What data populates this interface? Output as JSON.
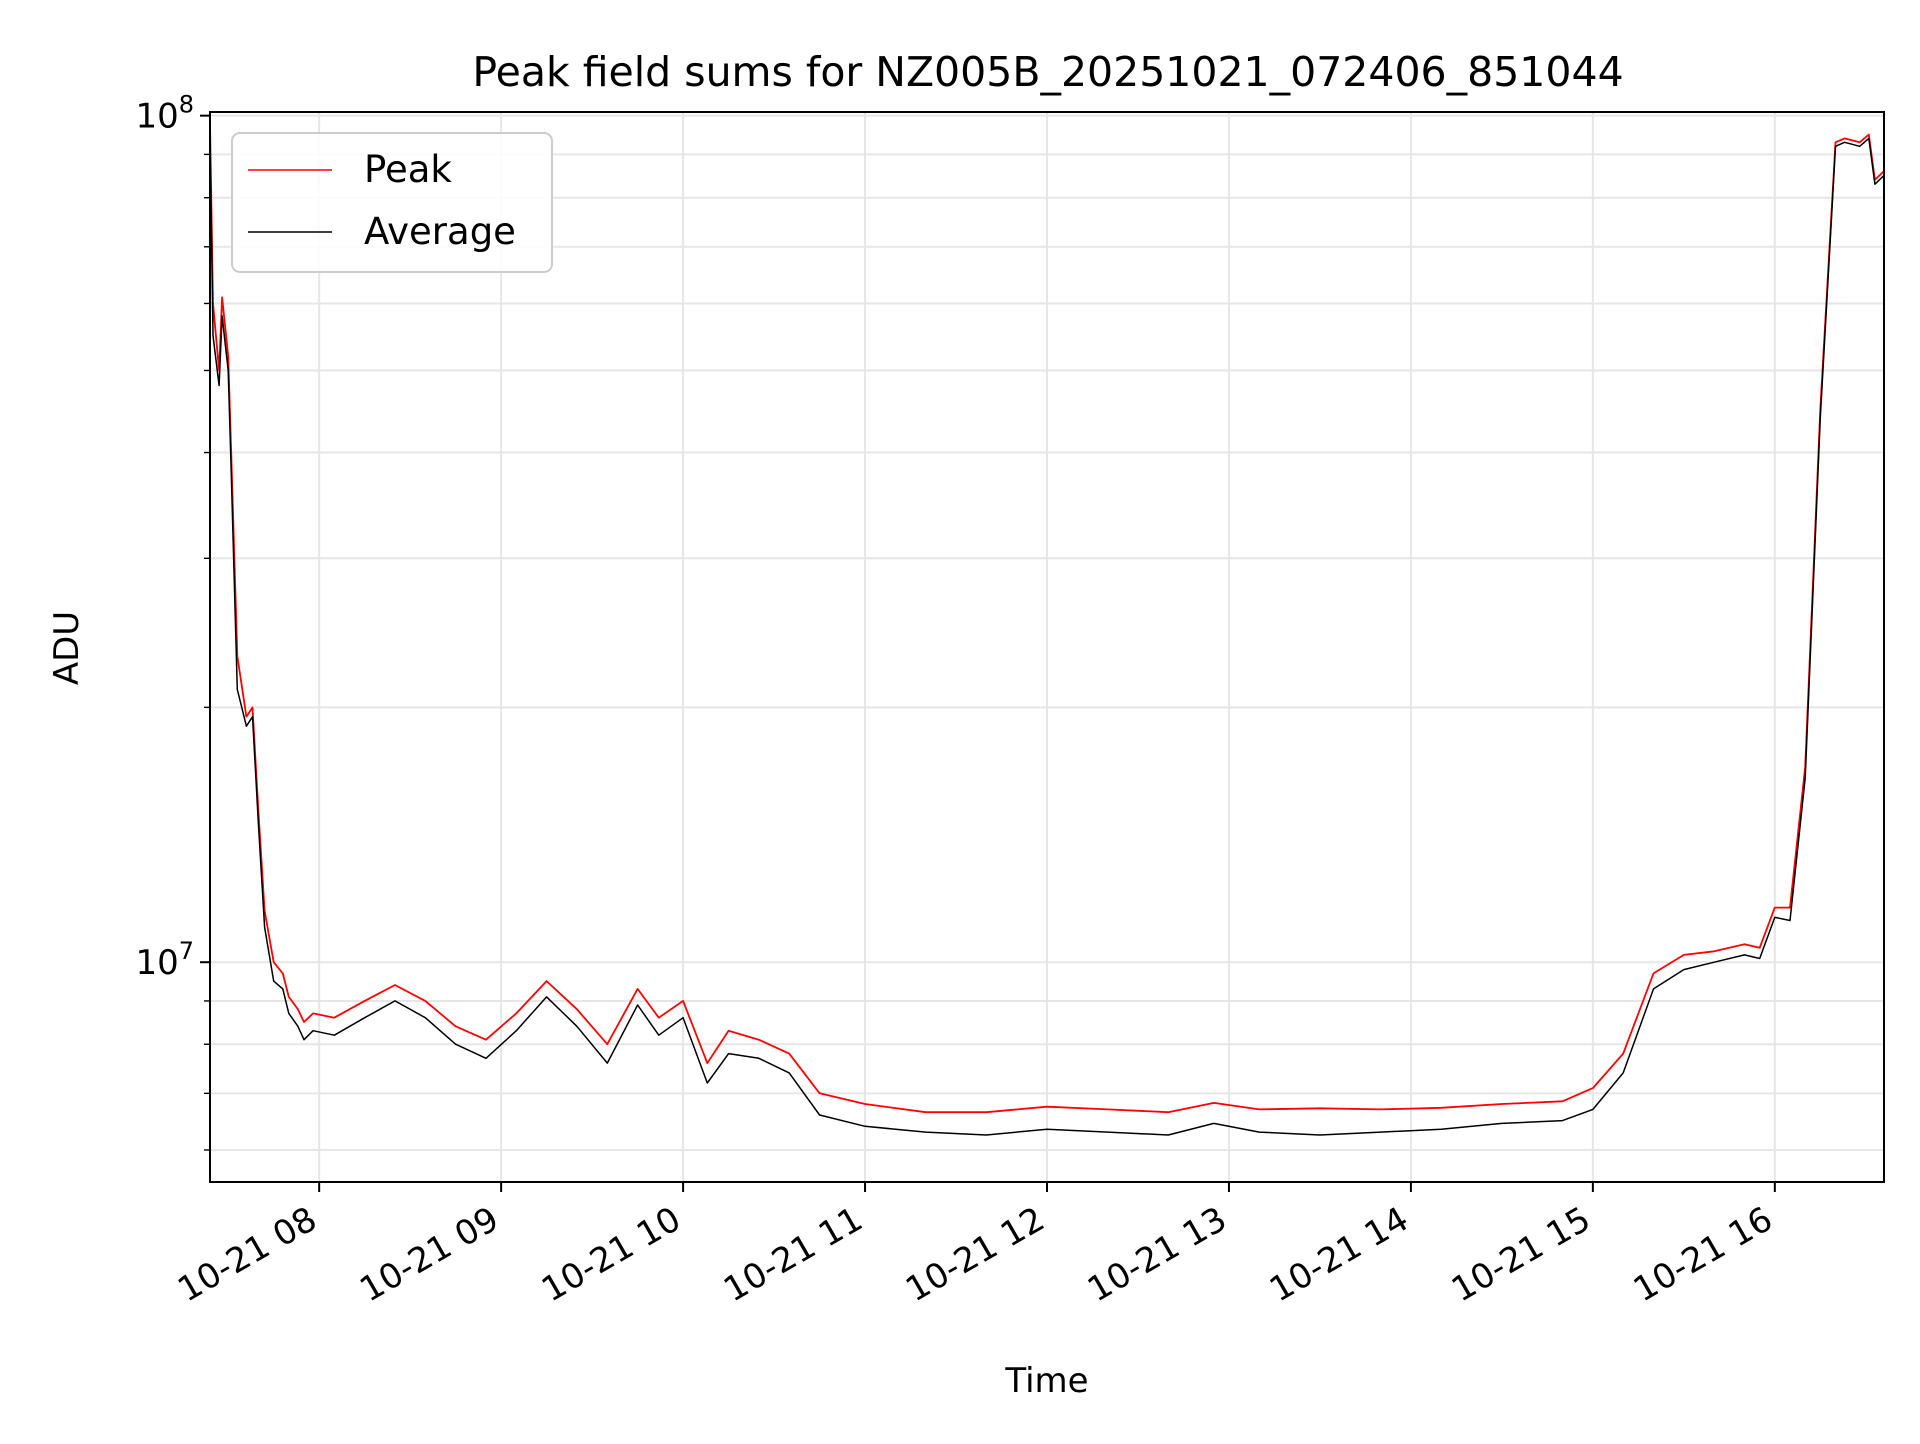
{
  "chart_data": {
    "type": "line",
    "title": "Peak field sums for NZ005B_20251021_072406_851044",
    "xlabel": "Time",
    "ylabel": "ADU",
    "yscale": "log",
    "ylim": [
      5500000,
      101000000
    ],
    "xlim": [
      "2025-10-21 07:24",
      "2025-10-21 16:36"
    ],
    "grid": true,
    "legend_position": "upper-left",
    "x_ticks": [
      {
        "label": "10-21 08",
        "value": "2025-10-21 08:00"
      },
      {
        "label": "10-21 09",
        "value": "2025-10-21 09:00"
      },
      {
        "label": "10-21 10",
        "value": "2025-10-21 10:00"
      },
      {
        "label": "10-21 11",
        "value": "2025-10-21 11:00"
      },
      {
        "label": "10-21 12",
        "value": "2025-10-21 12:00"
      },
      {
        "label": "10-21 13",
        "value": "2025-10-21 13:00"
      },
      {
        "label": "10-21 14",
        "value": "2025-10-21 14:00"
      },
      {
        "label": "10-21 15",
        "value": "2025-10-21 15:00"
      },
      {
        "label": "10-21 16",
        "value": "2025-10-21 16:00"
      }
    ],
    "y_ticks": [
      {
        "value": 10000000,
        "base": "10",
        "exp": "7"
      },
      {
        "value": 100000000,
        "base": "10",
        "exp": "8"
      }
    ],
    "series": [
      {
        "name": "Peak",
        "color": "#ff0000",
        "x": [
          "2025-10-21 07:24",
          "2025-10-21 07:25",
          "2025-10-21 07:27",
          "2025-10-21 07:28",
          "2025-10-21 07:30",
          "2025-10-21 07:31",
          "2025-10-21 07:33",
          "2025-10-21 07:36",
          "2025-10-21 07:38",
          "2025-10-21 07:40",
          "2025-10-21 07:42",
          "2025-10-21 07:45",
          "2025-10-21 07:48",
          "2025-10-21 07:50",
          "2025-10-21 07:53",
          "2025-10-21 07:55",
          "2025-10-21 07:58",
          "2025-10-21 08:05",
          "2025-10-21 08:15",
          "2025-10-21 08:25",
          "2025-10-21 08:35",
          "2025-10-21 08:45",
          "2025-10-21 08:55",
          "2025-10-21 09:05",
          "2025-10-21 09:15",
          "2025-10-21 09:25",
          "2025-10-21 09:35",
          "2025-10-21 09:45",
          "2025-10-21 09:52",
          "2025-10-21 10:00",
          "2025-10-21 10:08",
          "2025-10-21 10:15",
          "2025-10-21 10:25",
          "2025-10-21 10:35",
          "2025-10-21 10:45",
          "2025-10-21 11:00",
          "2025-10-21 11:20",
          "2025-10-21 11:40",
          "2025-10-21 12:00",
          "2025-10-21 12:20",
          "2025-10-21 12:40",
          "2025-10-21 12:55",
          "2025-10-21 13:10",
          "2025-10-21 13:30",
          "2025-10-21 13:50",
          "2025-10-21 14:10",
          "2025-10-21 14:30",
          "2025-10-21 14:50",
          "2025-10-21 15:00",
          "2025-10-21 15:10",
          "2025-10-21 15:20",
          "2025-10-21 15:30",
          "2025-10-21 15:40",
          "2025-10-21 15:50",
          "2025-10-21 15:55",
          "2025-10-21 16:00",
          "2025-10-21 16:05",
          "2025-10-21 16:10",
          "2025-10-21 16:15",
          "2025-10-21 16:20",
          "2025-10-21 16:23",
          "2025-10-21 16:28",
          "2025-10-21 16:31",
          "2025-10-21 16:33",
          "2025-10-21 16:36"
        ],
        "values": [
          98000000,
          60000000,
          50000000,
          61000000,
          52000000,
          40000000,
          23000000,
          19500000,
          20000000,
          15000000,
          11500000,
          10000000,
          9700000,
          9100000,
          8800000,
          8500000,
          8700000,
          8600000,
          9000000,
          9400000,
          9000000,
          8400000,
          8100000,
          8700000,
          9500000,
          8800000,
          8000000,
          9300000,
          8600000,
          9000000,
          7600000,
          8300000,
          8100000,
          7800000,
          7000000,
          6800000,
          6650000,
          6650000,
          6750000,
          6700000,
          6650000,
          6820000,
          6700000,
          6720000,
          6700000,
          6730000,
          6800000,
          6850000,
          7100000,
          7800000,
          9700000,
          10200000,
          10300000,
          10500000,
          10400000,
          11600000,
          11600000,
          17000000,
          45000000,
          93000000,
          94000000,
          93000000,
          95000000,
          84000000,
          86000000
        ]
      },
      {
        "name": "Average",
        "color": "#000000",
        "x": [
          "2025-10-21 07:24",
          "2025-10-21 07:25",
          "2025-10-21 07:27",
          "2025-10-21 07:28",
          "2025-10-21 07:30",
          "2025-10-21 07:31",
          "2025-10-21 07:33",
          "2025-10-21 07:36",
          "2025-10-21 07:38",
          "2025-10-21 07:40",
          "2025-10-21 07:42",
          "2025-10-21 07:45",
          "2025-10-21 07:48",
          "2025-10-21 07:50",
          "2025-10-21 07:53",
          "2025-10-21 07:55",
          "2025-10-21 07:58",
          "2025-10-21 08:05",
          "2025-10-21 08:15",
          "2025-10-21 08:25",
          "2025-10-21 08:35",
          "2025-10-21 08:45",
          "2025-10-21 08:55",
          "2025-10-21 09:05",
          "2025-10-21 09:15",
          "2025-10-21 09:25",
          "2025-10-21 09:35",
          "2025-10-21 09:45",
          "2025-10-21 09:52",
          "2025-10-21 10:00",
          "2025-10-21 10:08",
          "2025-10-21 10:15",
          "2025-10-21 10:25",
          "2025-10-21 10:35",
          "2025-10-21 10:45",
          "2025-10-21 11:00",
          "2025-10-21 11:20",
          "2025-10-21 11:40",
          "2025-10-21 12:00",
          "2025-10-21 12:20",
          "2025-10-21 12:40",
          "2025-10-21 12:55",
          "2025-10-21 13:10",
          "2025-10-21 13:30",
          "2025-10-21 13:50",
          "2025-10-21 14:10",
          "2025-10-21 14:30",
          "2025-10-21 14:50",
          "2025-10-21 15:00",
          "2025-10-21 15:10",
          "2025-10-21 15:20",
          "2025-10-21 15:30",
          "2025-10-21 15:40",
          "2025-10-21 15:50",
          "2025-10-21 15:55",
          "2025-10-21 16:00",
          "2025-10-21 16:05",
          "2025-10-21 16:10",
          "2025-10-21 16:15",
          "2025-10-21 16:20",
          "2025-10-21 16:23",
          "2025-10-21 16:28",
          "2025-10-21 16:31",
          "2025-10-21 16:33",
          "2025-10-21 16:36"
        ],
        "values": [
          95000000,
          55000000,
          48000000,
          58000000,
          50000000,
          38000000,
          21000000,
          19000000,
          19500000,
          14500000,
          11000000,
          9500000,
          9300000,
          8700000,
          8400000,
          8100000,
          8300000,
          8200000,
          8600000,
          9000000,
          8600000,
          8000000,
          7700000,
          8300000,
          9100000,
          8400000,
          7600000,
          8900000,
          8200000,
          8600000,
          7200000,
          7800000,
          7700000,
          7400000,
          6600000,
          6400000,
          6300000,
          6250000,
          6350000,
          6300000,
          6250000,
          6450000,
          6300000,
          6250000,
          6300000,
          6350000,
          6450000,
          6500000,
          6700000,
          7400000,
          9300000,
          9800000,
          10000000,
          10200000,
          10100000,
          11300000,
          11200000,
          16500000,
          44000000,
          92000000,
          93000000,
          92000000,
          94000000,
          83000000,
          85000000
        ]
      }
    ]
  }
}
